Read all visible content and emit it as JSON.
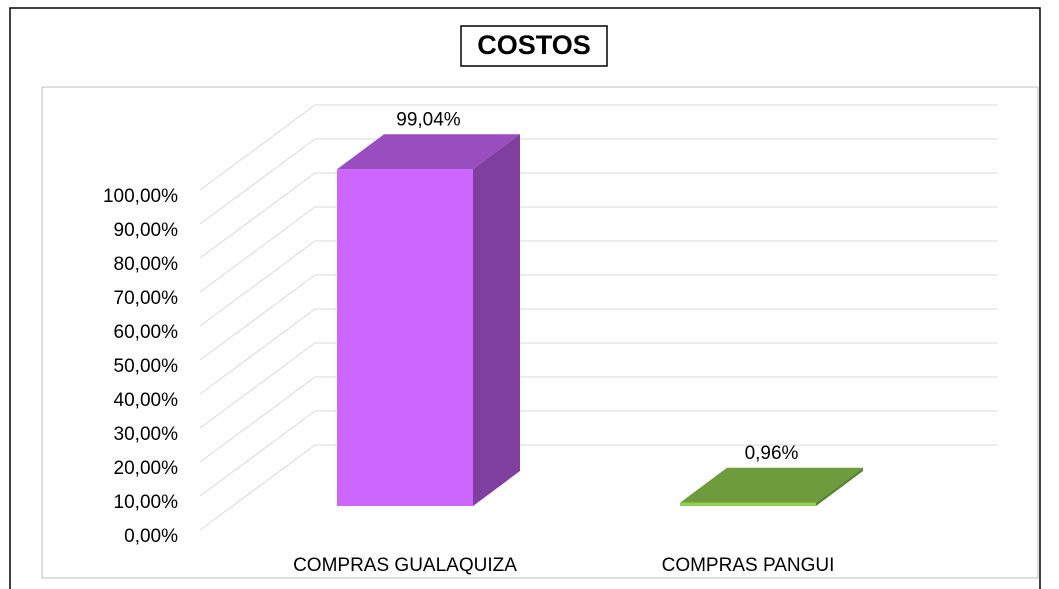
{
  "chart_data": {
    "type": "bar3d",
    "title": "COSTOS",
    "categories": [
      "COMPRAS GUALAQUIZA",
      "COMPRAS PANGUI"
    ],
    "values": [
      99.04,
      0.96
    ],
    "value_labels": [
      "99,04%",
      "0,96%"
    ],
    "colors": [
      "#cc66ff",
      "#92d050"
    ],
    "ylim": [
      0,
      100
    ],
    "yticks": [
      {
        "value": 0,
        "label": "0,00%"
      },
      {
        "value": 10,
        "label": "10,00%"
      },
      {
        "value": 20,
        "label": "20,00%"
      },
      {
        "value": 30,
        "label": "30,00%"
      },
      {
        "value": 40,
        "label": "40,00%"
      },
      {
        "value": 50,
        "label": "50,00%"
      },
      {
        "value": 60,
        "label": "60,00%"
      },
      {
        "value": 70,
        "label": "70,00%"
      },
      {
        "value": 80,
        "label": "80,00%"
      },
      {
        "value": 90,
        "label": "90,00%"
      },
      {
        "value": 100,
        "label": "100,00%"
      }
    ],
    "grid": true
  }
}
